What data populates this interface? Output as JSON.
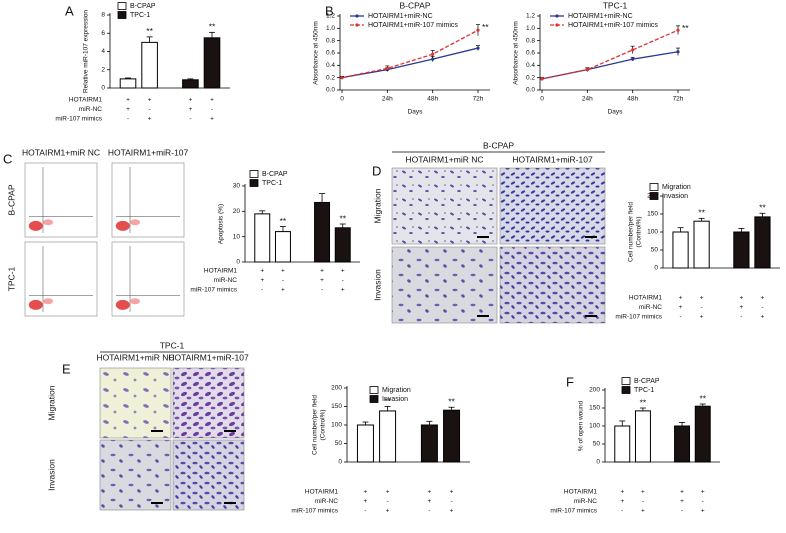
{
  "chart_data": [
    {
      "type": "bar",
      "panel": "A",
      "ylabel": [
        "Relative miR-107 expression"
      ],
      "ylim": [
        0,
        8
      ],
      "yticks": [
        0,
        2,
        4,
        6,
        8
      ],
      "series": [
        {
          "name": "B-CPAP",
          "color": "#ffffff",
          "values": [
            1.0,
            5.0
          ],
          "errors": [
            0.1,
            0.6
          ],
          "significance": [
            null,
            "**"
          ]
        },
        {
          "name": "TPC-1",
          "color": "#1a1111",
          "values": [
            0.9,
            5.5
          ],
          "errors": [
            0.1,
            0.6
          ],
          "significance": [
            null,
            "**"
          ]
        }
      ],
      "conditions": [
        {
          "label": "HOTAIRM1",
          "signs": [
            "+",
            "+",
            "+",
            "+"
          ]
        },
        {
          "label": "miR-NC",
          "signs": [
            "+",
            "-",
            "+",
            "-"
          ]
        },
        {
          "label": "miR-107 mimics",
          "signs": [
            "-",
            "+",
            "-",
            "+"
          ]
        }
      ]
    },
    {
      "type": "line",
      "panel": "B",
      "title": "B-CPAP",
      "categories": [
        "0",
        "24h",
        "48h",
        "72h"
      ],
      "xlabel": "Days",
      "ylabel": [
        "Absorbance at 450nm"
      ],
      "ylim": [
        0,
        1.2
      ],
      "yticks": [
        {
          "value": 0,
          "label": "0.0"
        },
        {
          "value": 0.2,
          "label": "0.2"
        },
        {
          "value": 0.4,
          "label": "0.4"
        },
        {
          "value": 0.6,
          "label": "0.6"
        },
        {
          "value": 0.8,
          "label": "0.8"
        },
        {
          "value": 1,
          "label": "1.0"
        },
        {
          "value": 1.2,
          "label": "1.2"
        }
      ],
      "series": [
        {
          "name": "HOTAIRM1+miR-NC",
          "color": "#2b3a8f",
          "style": "solid",
          "values": [
            0.2,
            0.33,
            0.5,
            0.68
          ],
          "errors": [
            0.02,
            0.03,
            0.04,
            0.04
          ],
          "significance": [
            null,
            null,
            null,
            null
          ]
        },
        {
          "name": "HOTAIRM1+miR-107 mimics",
          "color": "#e0312f",
          "style": "dashed",
          "values": [
            0.2,
            0.35,
            0.58,
            0.97
          ],
          "errors": [
            0.02,
            0.04,
            0.06,
            0.09
          ],
          "significance": [
            null,
            null,
            null,
            "**"
          ]
        }
      ]
    },
    {
      "type": "line",
      "title": "TPC-1",
      "categories": [
        "0",
        "24h",
        "48h",
        "72h"
      ],
      "xlabel": "Days",
      "ylabel": [
        "Absorbance at 450nm"
      ],
      "ylim": [
        0,
        1.2
      ],
      "yticks": [
        {
          "value": 0,
          "label": "0.0"
        },
        {
          "value": 0.2,
          "label": "0.2"
        },
        {
          "value": 0.4,
          "label": "0.4"
        },
        {
          "value": 0.6,
          "label": "0.6"
        },
        {
          "value": 0.8,
          "label": "0.8"
        },
        {
          "value": 1,
          "label": "1.0"
        },
        {
          "value": 1.2,
          "label": "1.2"
        }
      ],
      "series": [
        {
          "name": "HOTAIRM1+miR-NC",
          "color": "#2b3a8f",
          "style": "solid",
          "values": [
            0.18,
            0.33,
            0.5,
            0.62
          ],
          "errors": [
            0.02,
            0.03,
            0.03,
            0.06
          ],
          "significance": [
            null,
            null,
            null,
            null
          ]
        },
        {
          "name": "HOTAIRM1+miR-107 mimics",
          "color": "#e0312f",
          "style": "dashed",
          "values": [
            0.18,
            0.33,
            0.65,
            0.97
          ],
          "errors": [
            0.02,
            0.03,
            0.06,
            0.07
          ],
          "significance": [
            null,
            null,
            null,
            "**"
          ]
        }
      ]
    },
    {
      "type": "bar",
      "ylabel": [
        "Apoptosis (%)"
      ],
      "ylim": [
        0,
        30
      ],
      "yticks": [
        0,
        10,
        20,
        30
      ],
      "series": [
        {
          "name": "B-CPAP",
          "color": "#ffffff",
          "values": [
            19,
            12
          ],
          "errors": [
            1.2,
            2.0
          ],
          "significance": [
            null,
            "**"
          ]
        },
        {
          "name": "TPC-1",
          "color": "#1a1111",
          "values": [
            23.5,
            13.5
          ],
          "errors": [
            3.5,
            1.5
          ],
          "significance": [
            null,
            "**"
          ]
        }
      ],
      "conditions": [
        {
          "label": "HOTAIRM1",
          "signs": [
            "+",
            "+",
            "+",
            "+"
          ]
        },
        {
          "label": "miR-NC",
          "signs": [
            "+",
            "-",
            "+",
            "-"
          ]
        },
        {
          "label": "miR-107 mimics",
          "signs": [
            "-",
            "+",
            "-",
            "+"
          ]
        }
      ]
    },
    {
      "type": "bar",
      "ylabel": [
        "Cell number/per field",
        "(Control%)"
      ],
      "ylim": [
        0,
        200
      ],
      "yticks": [
        0,
        50,
        100,
        150,
        200
      ],
      "series": [
        {
          "name": "Migration",
          "color": "#ffffff",
          "values": [
            100,
            130
          ],
          "errors": [
            12,
            8
          ],
          "significance": [
            null,
            "**"
          ]
        },
        {
          "name": "Invasion",
          "color": "#1a1111",
          "values": [
            100,
            142
          ],
          "errors": [
            10,
            10
          ],
          "significance": [
            null,
            "**"
          ]
        }
      ],
      "conditions": [
        {
          "label": "HOTAIRM1",
          "signs": [
            "+",
            "+",
            "+",
            "+"
          ]
        },
        {
          "label": "miR-NC",
          "signs": [
            "+",
            "-",
            "+",
            "-"
          ]
        },
        {
          "label": "miR-107 mimics",
          "signs": [
            "-",
            "+",
            "-",
            "+"
          ]
        }
      ]
    },
    {
      "type": "bar",
      "ylabel": [
        "Cell number/per field",
        "(Control%)"
      ],
      "ylim": [
        0,
        200
      ],
      "yticks": [
        0,
        50,
        100,
        150,
        200
      ],
      "series": [
        {
          "name": "Migration",
          "color": "#ffffff",
          "values": [
            100,
            138
          ],
          "errors": [
            8,
            12
          ],
          "significance": [
            null,
            "**"
          ]
        },
        {
          "name": "Invasion",
          "color": "#1a1111",
          "values": [
            100,
            140
          ],
          "errors": [
            10,
            8
          ],
          "significance": [
            null,
            "**"
          ]
        }
      ],
      "conditions": [
        {
          "label": "HOTAIRM1",
          "signs": [
            "+",
            "+",
            "+",
            "+"
          ]
        },
        {
          "label": "miR-NC",
          "signs": [
            "+",
            "-",
            "+",
            "-"
          ]
        },
        {
          "label": "miR-107 mimics",
          "signs": [
            "-",
            "+",
            "-",
            "+"
          ]
        }
      ]
    },
    {
      "type": "bar",
      "panel": "F",
      "ylabel": [
        "% of open wound"
      ],
      "ylim": [
        0,
        200
      ],
      "yticks": [
        0,
        50,
        100,
        150,
        200
      ],
      "series": [
        {
          "name": "B-CPAP",
          "color": "#ffffff",
          "values": [
            100,
            142
          ],
          "errors": [
            14,
            8
          ],
          "significance": [
            null,
            "**"
          ]
        },
        {
          "name": "TPC-1",
          "color": "#1a1111",
          "values": [
            100,
            155
          ],
          "errors": [
            10,
            6
          ],
          "significance": [
            null,
            "**"
          ]
        }
      ],
      "conditions": [
        {
          "label": "HOTAIRM1",
          "signs": [
            "+",
            "+",
            "+",
            "+"
          ]
        },
        {
          "label": "miR-NC",
          "signs": [
            "+",
            "-",
            "+",
            "-"
          ]
        },
        {
          "label": "miR-107 mimics",
          "signs": [
            "-",
            "+",
            "-",
            "+"
          ]
        }
      ]
    }
  ],
  "figures": [
    {
      "panel": "C",
      "image_type": "flow-cytometry",
      "columns": [
        "HOTAIRM1+miR NC",
        "HOTAIRM1+miR-107"
      ],
      "rows": [
        "B-CPAP",
        "TPC-1"
      ]
    },
    {
      "panel": "D",
      "image_type": "micrograph",
      "title": "B-CPAP",
      "columns": [
        "HOTAIRM1+miR NC",
        "HOTAIRM1+miR-107"
      ],
      "rows": [
        "Migration",
        "Invasion"
      ]
    },
    {
      "panel": "E",
      "image_type": "micrograph",
      "title": "TPC-1",
      "columns": [
        "HOTAIRM1+miR NC",
        "HOTAIRM1+miR-107"
      ],
      "rows": [
        "Migration",
        "Invasion"
      ]
    }
  ]
}
